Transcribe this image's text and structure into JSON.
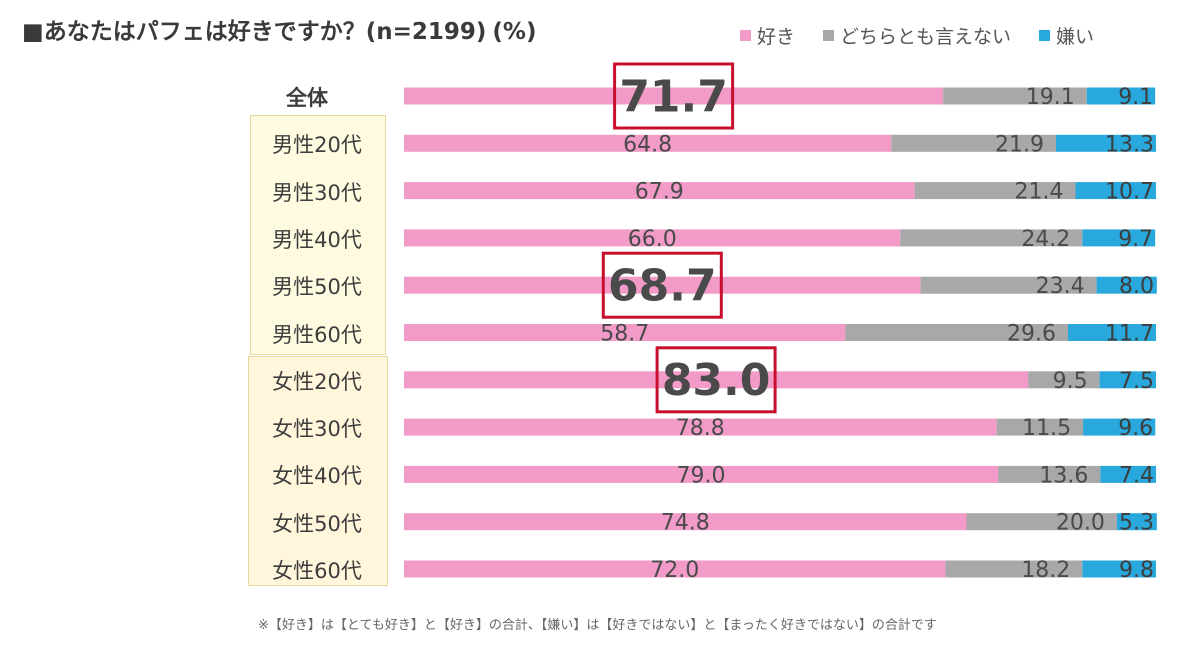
{
  "title": "■あなたはパフェは好きですか？(n=2199)",
  "unit": "(%)",
  "legend": [
    {
      "name": "好き",
      "color": "#f29ac8"
    },
    {
      "name": "どちらとも言えない",
      "color": "#a8a8a8"
    },
    {
      "name": "嫌い",
      "color": "#29a8dd"
    }
  ],
  "footnote": "※【好き】は【とても好き】と【好き】の合計、【嫌い】は【好きではない】と【まったく好きではない】の合計です",
  "chart_data": {
    "type": "bar",
    "orientation": "horizontal",
    "stacked": true,
    "title": "■あなたはパフェは好きですか？(n=2199)",
    "unit": "(%)",
    "categories": [
      "全体",
      "男性20代",
      "男性30代",
      "男性40代",
      "男性50代",
      "男性60代",
      "女性20代",
      "女性30代",
      "女性40代",
      "女性50代",
      "女性60代"
    ],
    "series": [
      {
        "name": "好き",
        "color": "#f29ac8",
        "values": [
          71.7,
          64.8,
          67.9,
          66.0,
          68.7,
          58.7,
          83.0,
          78.8,
          79.0,
          74.8,
          72.0
        ]
      },
      {
        "name": "どちらとも言えない",
        "color": "#a8a8a8",
        "values": [
          19.1,
          21.9,
          21.4,
          24.2,
          23.4,
          29.6,
          9.5,
          11.5,
          13.6,
          20.0,
          18.2
        ]
      },
      {
        "name": "嫌い",
        "color": "#29a8dd",
        "values": [
          9.1,
          13.3,
          10.7,
          9.7,
          8.0,
          11.7,
          7.5,
          9.6,
          7.4,
          5.3,
          9.8
        ]
      }
    ],
    "labels": [
      [
        "71.7",
        "19.1",
        "9.1"
      ],
      [
        "64.8",
        "21.9",
        "13.3"
      ],
      [
        "67.9",
        "21.4",
        "10.7"
      ],
      [
        "66.0",
        "24.2",
        "9.7"
      ],
      [
        "68.7",
        "23.4",
        "8.0"
      ],
      [
        "58.7",
        "29.6",
        "11.7"
      ],
      [
        "83.0",
        "9.5",
        "7.5"
      ],
      [
        "78.8",
        "11.5",
        "9.6"
      ],
      [
        "79.0",
        "13.6",
        "7.4"
      ],
      [
        "74.8",
        "20.0",
        "5.3"
      ],
      [
        "72.0",
        "18.2",
        "9.8"
      ]
    ],
    "highlighted_categories": [
      "全体",
      "男性50代",
      "女性20代"
    ],
    "xlim": [
      0,
      100
    ],
    "grid": false,
    "legend_position": "top-right"
  }
}
